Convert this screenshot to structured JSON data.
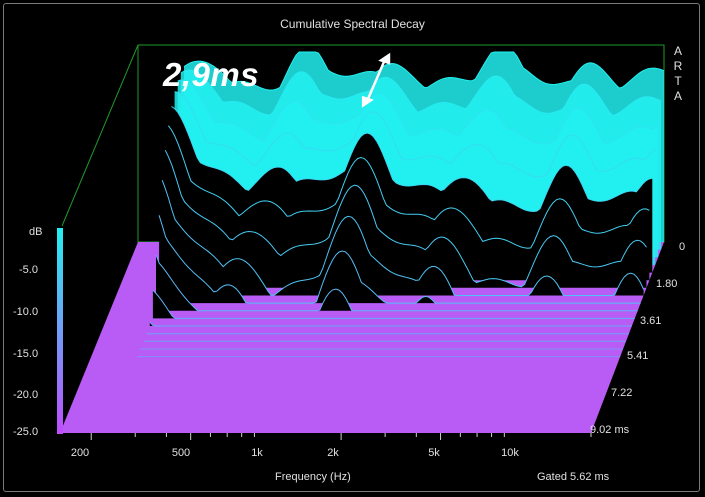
{
  "chart_data": {
    "type": "waterfall",
    "title": "Cumulative Spectral Decay",
    "side_label": [
      "A",
      "R",
      "T",
      "A"
    ],
    "annotation": "2,9ms",
    "annotation_arrow_freq_hz": 1350,
    "xlabel": "Frequency (Hz)",
    "x_tick_labels": [
      "200",
      "500",
      "1k",
      "2k",
      "5k",
      "10k"
    ],
    "x_tick_values": [
      200,
      500,
      1000,
      2000,
      5000,
      10000
    ],
    "x_scale": "log",
    "xlim": [
      150,
      20000
    ],
    "zlabel": "dB",
    "z_tick_labels": [
      "-5.0",
      "-10.0",
      "-15.0",
      "-20.0",
      "-25.0"
    ],
    "z_tick_values": [
      -5,
      -10,
      -15,
      -20,
      -25
    ],
    "zlim": [
      -25,
      0
    ],
    "time_tick_labels": [
      "0",
      "1.80",
      "3.61",
      "5.41",
      "7.22",
      "9.02 ms"
    ],
    "time_tick_values": [
      0,
      1.8,
      3.61,
      5.41,
      7.22,
      9.02
    ],
    "time_unit": "ms",
    "gated_label": "Gated 5.62 ms",
    "grid": false,
    "colors": {
      "top": "#22f0f0",
      "bottom": "#c04cff",
      "floor": "#b95cf5",
      "frame": "#1f9a2a",
      "annotation_arrow": "#ffffff"
    }
  }
}
